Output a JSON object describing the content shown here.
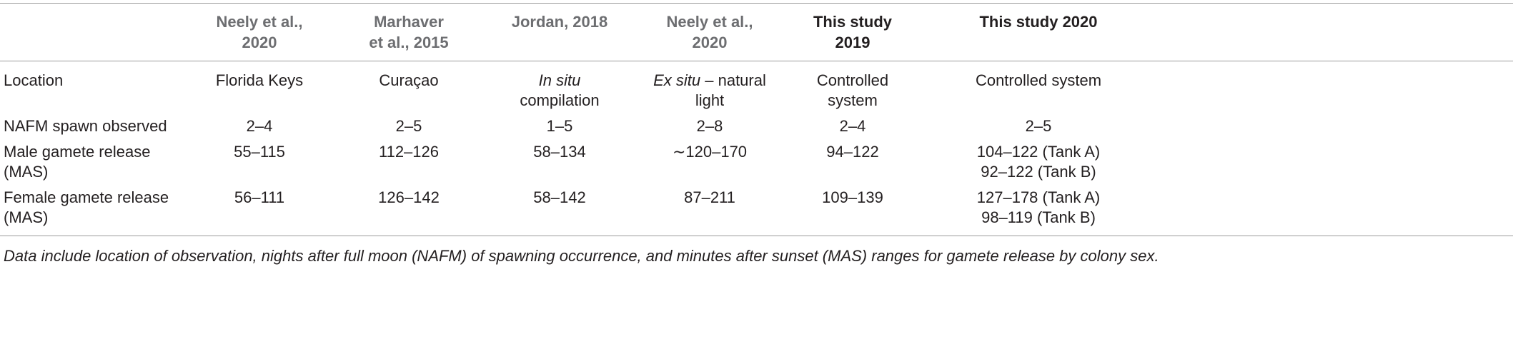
{
  "table": {
    "header": [
      [
        "Neely et al.,",
        "2020"
      ],
      [
        "Marhaver",
        "et al., 2015"
      ],
      [
        "Jordan, 2018"
      ],
      [
        "Neely et al.,",
        "2020"
      ],
      [
        "This study",
        "2019"
      ],
      [
        "This study 2020"
      ]
    ],
    "rows": [
      {
        "label": [
          "Location"
        ],
        "cells": [
          [
            "Florida Keys"
          ],
          [
            "Curaçao"
          ],
          [
            {
              "em": "In situ"
            },
            "compilation"
          ],
          [
            {
              "em": "Ex situ",
              "text": " – natural"
            },
            "light"
          ],
          [
            "Controlled",
            "system"
          ],
          [
            "Controlled system"
          ]
        ]
      },
      {
        "label": [
          "NAFM spawn observed"
        ],
        "cells": [
          [
            "2–4"
          ],
          [
            "2–5"
          ],
          [
            "1–5"
          ],
          [
            "2–8"
          ],
          [
            "2–4"
          ],
          [
            "2–5"
          ]
        ]
      },
      {
        "label": [
          "Male gamete release",
          "(MAS)"
        ],
        "cells": [
          [
            "55–115"
          ],
          [
            "112–126"
          ],
          [
            "58–134"
          ],
          [
            "∼120–170"
          ],
          [
            "94–122"
          ],
          [
            "104–122 (Tank A)",
            "92–122 (Tank B)"
          ]
        ]
      },
      {
        "label": [
          "Female gamete release",
          "(MAS)"
        ],
        "cells": [
          [
            "56–111"
          ],
          [
            "126–142"
          ],
          [
            "58–142"
          ],
          [
            "87–211"
          ],
          [
            "109–139"
          ],
          [
            "127–178 (Tank A)",
            "98–119 (Tank B)"
          ]
        ]
      }
    ],
    "footnote": "Data include location of observation, nights after full moon (NAFM) of spawning occurrence, and minutes after sunset (MAS) ranges for gamete release by colony sex."
  }
}
